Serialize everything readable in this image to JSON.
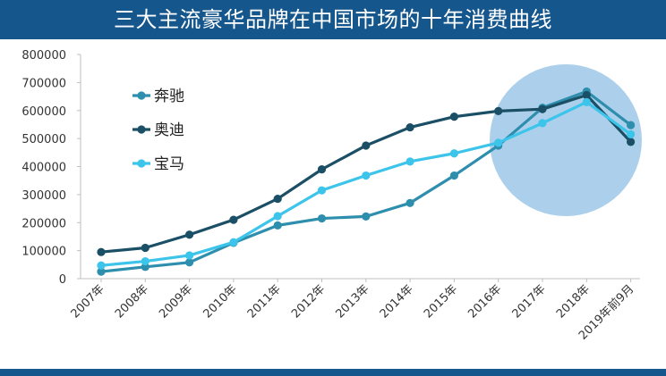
{
  "header": {
    "title": "三大主流豪华品牌在中国市场的十年消费曲线"
  },
  "colors": {
    "title_bar": "#15568c",
    "highlight_circle": "#9ec8e7",
    "benz": "#2e8ead",
    "audi": "#1a4f66",
    "bmw": "#3cc4ea"
  },
  "chart_data": {
    "type": "line",
    "title": "三大主流豪华品牌在中国市场的十年消费曲线",
    "xlabel": "",
    "ylabel": "",
    "categories": [
      "2007年",
      "2008年",
      "2009年",
      "2010年",
      "2011年",
      "2012年",
      "2013年",
      "2014年",
      "2015年",
      "2016年",
      "2017年",
      "2018年",
      "2019年前9月"
    ],
    "ylim": [
      0,
      800000
    ],
    "yticks": [
      "0",
      "100000",
      "200000",
      "300000",
      "400000",
      "500000",
      "600000",
      "700000",
      "800000"
    ],
    "grid": false,
    "legend_position": "top-left inside plot",
    "series": [
      {
        "name": "奔驰",
        "color": "#2e8ead",
        "values": [
          25000,
          42000,
          58000,
          128000,
          190000,
          215000,
          222000,
          270000,
          368000,
          475000,
          610000,
          668000,
          548000
        ]
      },
      {
        "name": "奥迪",
        "color": "#1a4f66",
        "values": [
          95000,
          110000,
          157000,
          210000,
          285000,
          390000,
          475000,
          540000,
          578000,
          598000,
          605000,
          655000,
          488000
        ]
      },
      {
        "name": "宝马",
        "color": "#3cc4ea",
        "values": [
          47000,
          62000,
          83000,
          130000,
          223000,
          315000,
          368000,
          418000,
          447000,
          485000,
          555000,
          630000,
          515000
        ]
      }
    ],
    "highlight": {
      "shape": "circle",
      "covers": [
        "2017年",
        "2018年",
        "2019年前9月"
      ]
    }
  }
}
